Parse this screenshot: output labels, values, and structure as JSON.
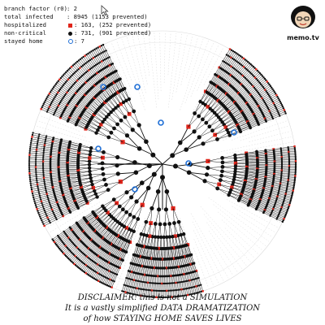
{
  "stats": [
    {
      "label": "branch factor (r0)",
      "sep": ": ",
      "value": "2"
    },
    {
      "label": "total infected",
      "sep": ": ",
      "value": "8945 (1153 prevented)"
    },
    {
      "label": "hospitalized",
      "symbol": "red-square-icon",
      "value": ": 163, (252 prevented)"
    },
    {
      "label": "non-critical",
      "symbol": "black-dot-icon",
      "value": ": 731, (901 prevented)"
    },
    {
      "label": "stayed home",
      "symbol": "blue-ring-icon",
      "value": ": 7"
    }
  ],
  "brand": "memo.tv",
  "disclaimer": {
    "line1": "DISCLAIMER: this is not a SIMULATION",
    "line2": "It is a vastly simplified DATA DRAMATIZATION",
    "line3": "of how STAYING HOME SAVES LIVES"
  },
  "colors": {
    "infected": "#111111",
    "hospitalized": "#e0251b",
    "stayed_home": "#1f6fd6",
    "prevented": "#cfcfcf"
  }
}
